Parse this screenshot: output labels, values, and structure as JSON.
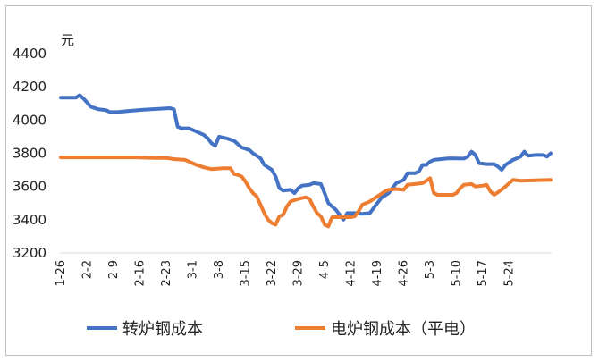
{
  "chart_data": {
    "type": "line",
    "unit": "元",
    "ylim": [
      3200,
      4400
    ],
    "yticks": [
      "3200",
      "3400",
      "3600",
      "3800",
      "4000",
      "4200",
      "4400"
    ],
    "xticks": [
      "1-26",
      "2-2",
      "2-9",
      "2-16",
      "2-23",
      "3-1",
      "3-8",
      "3-15",
      "3-22",
      "3-29",
      "4-5",
      "4-12",
      "4-19",
      "4-26",
      "5-3",
      "5-10",
      "5-17",
      "5-24"
    ],
    "grid": false,
    "legend_position": "bottom",
    "series": [
      {
        "name": "转炉钢成本",
        "color": "#4472C4",
        "values": [
          [
            0,
            4135
          ],
          [
            4,
            4135
          ],
          [
            5,
            4150
          ],
          [
            6,
            4130
          ],
          [
            8,
            4080
          ],
          [
            10,
            4065
          ],
          [
            12,
            4060
          ],
          [
            13,
            4048
          ],
          [
            15,
            4048
          ],
          [
            18,
            4055
          ],
          [
            22,
            4062
          ],
          [
            26,
            4068
          ],
          [
            29,
            4072
          ],
          [
            30,
            4065
          ],
          [
            31,
            3960
          ],
          [
            32,
            3950
          ],
          [
            34,
            3950
          ],
          [
            36,
            3930
          ],
          [
            38,
            3910
          ],
          [
            39,
            3890
          ],
          [
            40,
            3860
          ],
          [
            41,
            3845
          ],
          [
            42,
            3900
          ],
          [
            44,
            3890
          ],
          [
            46,
            3875
          ],
          [
            48,
            3835
          ],
          [
            50,
            3820
          ],
          [
            51,
            3800
          ],
          [
            53,
            3770
          ],
          [
            54,
            3730
          ],
          [
            56,
            3700
          ],
          [
            57,
            3660
          ],
          [
            58,
            3590
          ],
          [
            59,
            3575
          ],
          [
            61,
            3580
          ],
          [
            62,
            3560
          ],
          [
            63,
            3590
          ],
          [
            64,
            3605
          ],
          [
            66,
            3610
          ],
          [
            67,
            3620
          ],
          [
            69,
            3615
          ],
          [
            70,
            3560
          ],
          [
            71,
            3500
          ],
          [
            73,
            3460
          ],
          [
            74,
            3430
          ],
          [
            75,
            3400
          ],
          [
            76,
            3440
          ],
          [
            78,
            3440
          ],
          [
            80,
            3435
          ],
          [
            82,
            3440
          ],
          [
            83,
            3470
          ],
          [
            84,
            3500
          ],
          [
            85,
            3530
          ],
          [
            87,
            3560
          ],
          [
            88,
            3590
          ],
          [
            89,
            3620
          ],
          [
            91,
            3640
          ],
          [
            92,
            3680
          ],
          [
            94,
            3680
          ],
          [
            95,
            3690
          ],
          [
            96,
            3730
          ],
          [
            97,
            3730
          ],
          [
            98,
            3750
          ],
          [
            99,
            3760
          ],
          [
            101,
            3765
          ],
          [
            103,
            3770
          ],
          [
            107,
            3768
          ],
          [
            108,
            3780
          ],
          [
            109,
            3810
          ],
          [
            110,
            3790
          ],
          [
            111,
            3740
          ],
          [
            113,
            3735
          ],
          [
            115,
            3735
          ],
          [
            116,
            3720
          ],
          [
            117,
            3700
          ],
          [
            118,
            3730
          ],
          [
            120,
            3760
          ],
          [
            121,
            3770
          ],
          [
            122,
            3780
          ],
          [
            123,
            3810
          ],
          [
            124,
            3785
          ],
          [
            126,
            3790
          ],
          [
            128,
            3790
          ],
          [
            129,
            3780
          ],
          [
            130,
            3800
          ]
        ]
      },
      {
        "name": "电炉钢成本（平电）",
        "color": "#ED7D31",
        "values": [
          [
            0,
            3775
          ],
          [
            4,
            3775
          ],
          [
            10,
            3775
          ],
          [
            15,
            3775
          ],
          [
            20,
            3775
          ],
          [
            25,
            3772
          ],
          [
            28,
            3772
          ],
          [
            30,
            3765
          ],
          [
            33,
            3760
          ],
          [
            36,
            3730
          ],
          [
            38,
            3715
          ],
          [
            40,
            3705
          ],
          [
            43,
            3710
          ],
          [
            45,
            3710
          ],
          [
            46,
            3675
          ],
          [
            47,
            3670
          ],
          [
            48,
            3660
          ],
          [
            49,
            3630
          ],
          [
            50,
            3590
          ],
          [
            51,
            3560
          ],
          [
            52,
            3540
          ],
          [
            53,
            3490
          ],
          [
            54,
            3440
          ],
          [
            55,
            3400
          ],
          [
            56,
            3380
          ],
          [
            57,
            3370
          ],
          [
            58,
            3420
          ],
          [
            59,
            3430
          ],
          [
            60,
            3480
          ],
          [
            61,
            3510
          ],
          [
            63,
            3525
          ],
          [
            65,
            3535
          ],
          [
            66,
            3525
          ],
          [
            67,
            3480
          ],
          [
            68,
            3440
          ],
          [
            69,
            3420
          ],
          [
            70,
            3370
          ],
          [
            71,
            3360
          ],
          [
            72,
            3415
          ],
          [
            74,
            3415
          ],
          [
            77,
            3415
          ],
          [
            78,
            3420
          ],
          [
            79,
            3450
          ],
          [
            80,
            3490
          ],
          [
            82,
            3510
          ],
          [
            84,
            3540
          ],
          [
            85,
            3555
          ],
          [
            86,
            3570
          ],
          [
            87,
            3580
          ],
          [
            89,
            3585
          ],
          [
            91,
            3580
          ],
          [
            92,
            3610
          ],
          [
            94,
            3615
          ],
          [
            96,
            3620
          ],
          [
            97,
            3635
          ],
          [
            98,
            3650
          ],
          [
            99,
            3560
          ],
          [
            100,
            3550
          ],
          [
            104,
            3550
          ],
          [
            105,
            3560
          ],
          [
            106,
            3590
          ],
          [
            107,
            3610
          ],
          [
            109,
            3615
          ],
          [
            110,
            3600
          ],
          [
            112,
            3605
          ],
          [
            113,
            3610
          ],
          [
            114,
            3570
          ],
          [
            115,
            3550
          ],
          [
            116,
            3565
          ],
          [
            118,
            3600
          ],
          [
            119,
            3620
          ],
          [
            120,
            3640
          ],
          [
            122,
            3635
          ],
          [
            126,
            3637
          ],
          [
            130,
            3640
          ]
        ]
      }
    ]
  }
}
